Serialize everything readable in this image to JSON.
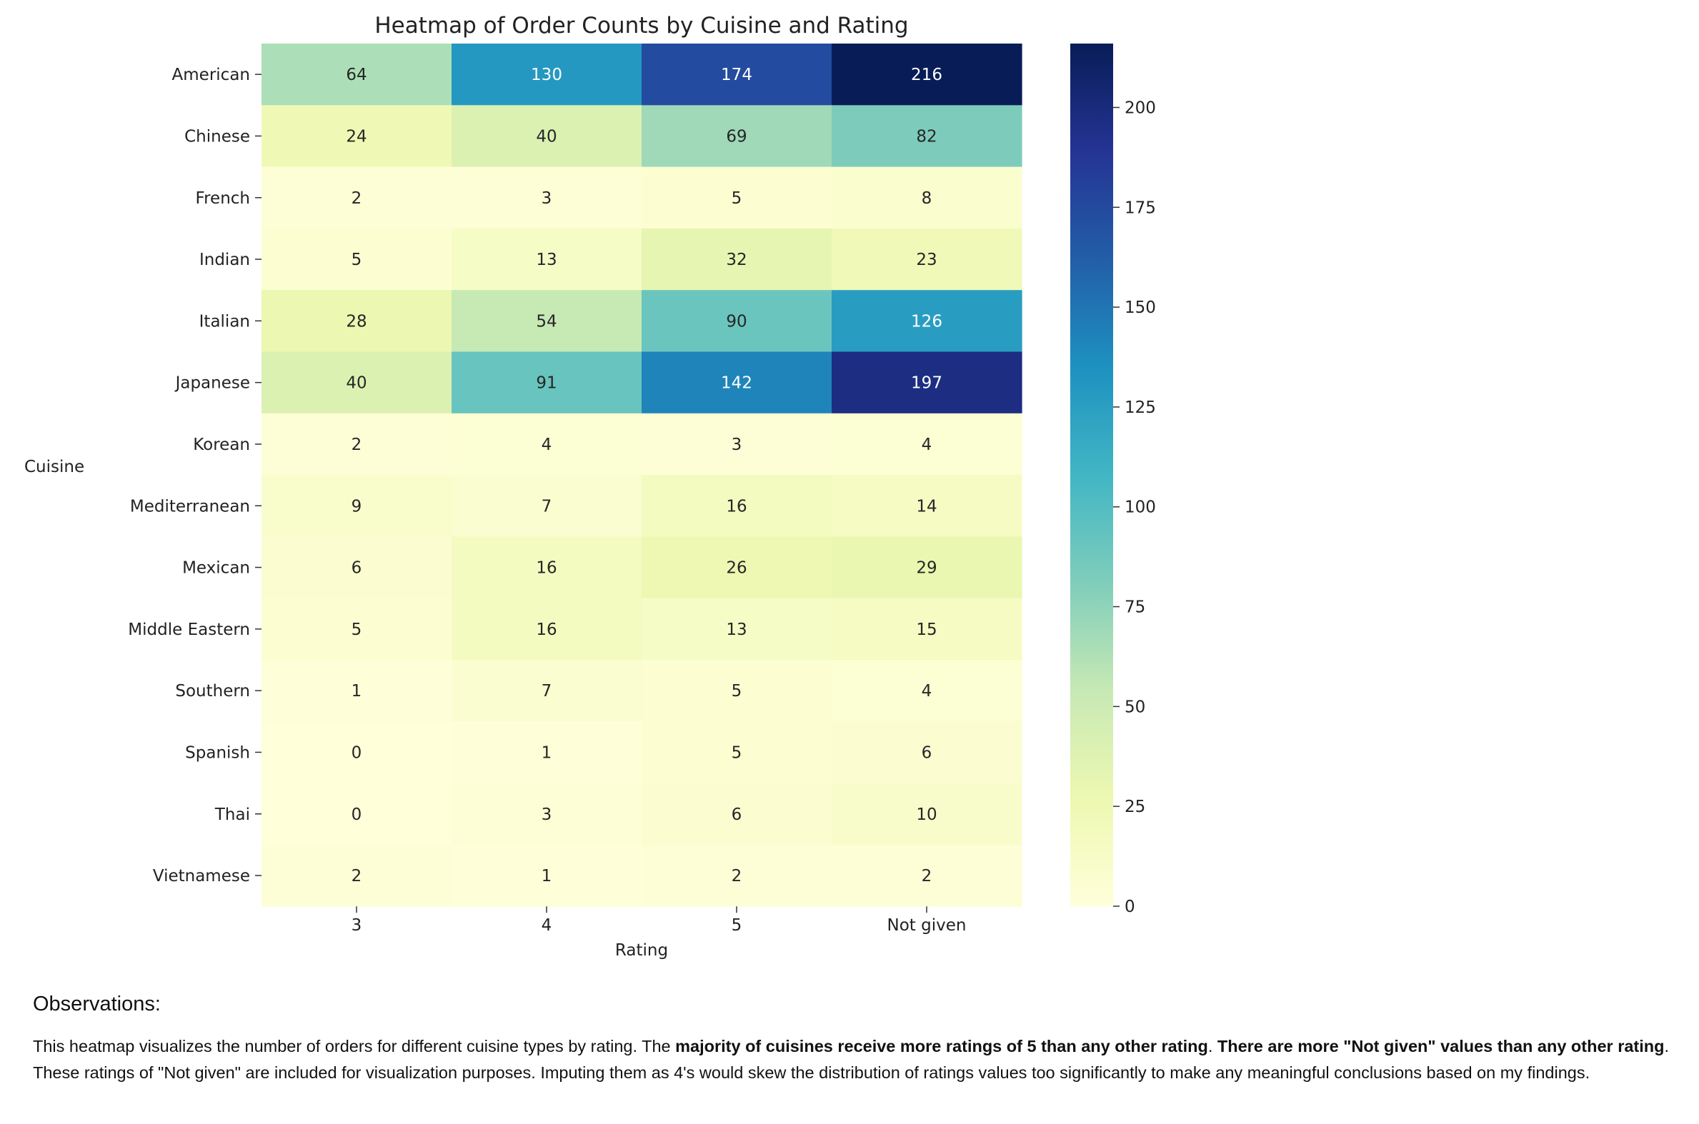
{
  "chart_data": {
    "type": "heatmap",
    "title": "Heatmap of Order Counts by Cuisine and Rating",
    "xlabel": "Rating",
    "ylabel": "Cuisine",
    "x_categories": [
      "3",
      "4",
      "5",
      "Not given"
    ],
    "y_categories": [
      "American",
      "Chinese",
      "French",
      "Indian",
      "Italian",
      "Japanese",
      "Korean",
      "Mediterranean",
      "Mexican",
      "Middle Eastern",
      "Southern",
      "Spanish",
      "Thai",
      "Vietnamese"
    ],
    "values": [
      [
        64,
        130,
        174,
        216
      ],
      [
        24,
        40,
        69,
        82
      ],
      [
        2,
        3,
        5,
        8
      ],
      [
        5,
        13,
        32,
        23
      ],
      [
        28,
        54,
        90,
        126
      ],
      [
        40,
        91,
        142,
        197
      ],
      [
        2,
        4,
        3,
        4
      ],
      [
        9,
        7,
        16,
        14
      ],
      [
        6,
        16,
        26,
        29
      ],
      [
        5,
        16,
        13,
        15
      ],
      [
        1,
        7,
        5,
        4
      ],
      [
        0,
        1,
        5,
        6
      ],
      [
        0,
        3,
        6,
        10
      ],
      [
        2,
        1,
        2,
        2
      ]
    ],
    "colormap": "YlGnBu",
    "vmin": 0,
    "vmax": 216,
    "colorbar_ticks": [
      "0",
      "25",
      "50",
      "75",
      "100",
      "125",
      "150",
      "175",
      "200"
    ],
    "annotated": true
  },
  "observations": {
    "heading": "Observations:",
    "intro": "This heatmap visualizes the number of orders for different cuisine types by rating. The ",
    "bold1": "majority of cuisines receive more ratings of 5 than any other rating",
    "mid": ". ",
    "bold2": "There are more \"Not given\" values than any other rating",
    "rest": ". These ratings of \"Not given\" are included for visualization purposes. Imputing them as 4's would skew the distribution of ratings values too significantly to make any meaningful conclusions based on my findings."
  }
}
